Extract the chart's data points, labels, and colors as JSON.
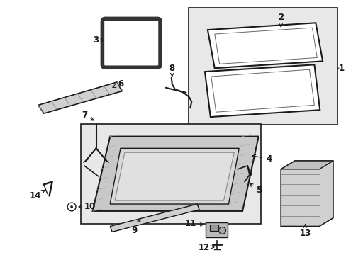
{
  "bg_color": "#ffffff",
  "fig_width": 4.89,
  "fig_height": 3.6,
  "dpi": 100,
  "line_color": "#1a1a1a",
  "box_fill": "#e8e8e8",
  "part_fill": "#d0d0d0"
}
